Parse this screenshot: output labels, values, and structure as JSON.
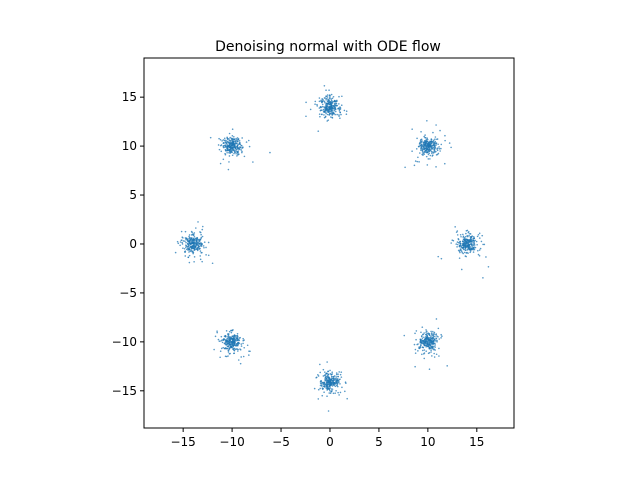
{
  "chart_data": {
    "type": "scatter",
    "title": "Denoising normal with ODE flow",
    "xlabel": "",
    "ylabel": "",
    "xlim": [
      -19.0,
      18.8
    ],
    "ylim": [
      -18.8,
      19.0
    ],
    "xticks": [
      -15,
      -10,
      -5,
      0,
      5,
      10,
      15
    ],
    "yticks": [
      -15,
      -10,
      -5,
      0,
      5,
      10,
      15
    ],
    "tick_labels": {
      "x": [
        "−15",
        "−10",
        "−5",
        "0",
        "5",
        "10",
        "15"
      ],
      "y": [
        "−15",
        "−10",
        "−5",
        "0",
        "5",
        "10",
        "15"
      ]
    },
    "grid": false,
    "legend": "none",
    "marker_color": "#1f77b4",
    "clusters": [
      {
        "center": [
          0,
          14
        ],
        "spread": 0.45,
        "points": 260
      },
      {
        "center": [
          10,
          10
        ],
        "spread": 0.45,
        "points": 260
      },
      {
        "center": [
          14,
          0
        ],
        "spread": 0.45,
        "points": 260
      },
      {
        "center": [
          10,
          -10
        ],
        "spread": 0.45,
        "points": 260
      },
      {
        "center": [
          0,
          -14.2
        ],
        "spread": 0.45,
        "points": 260
      },
      {
        "center": [
          -10,
          -10
        ],
        "spread": 0.45,
        "points": 260
      },
      {
        "center": [
          -14,
          0
        ],
        "spread": 0.45,
        "points": 260
      },
      {
        "center": [
          -10,
          10
        ],
        "spread": 0.45,
        "points": 260
      }
    ]
  }
}
